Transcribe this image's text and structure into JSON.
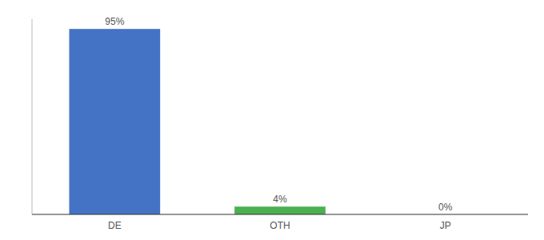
{
  "chart_data": {
    "type": "bar",
    "categories": [
      "DE",
      "OTH",
      "JP"
    ],
    "values": [
      95,
      4,
      0
    ],
    "value_labels": [
      "95%",
      "4%",
      "0%"
    ],
    "colors": [
      "#4472c4",
      "#4CAF50",
      "#4472c4"
    ],
    "ylim": [
      0,
      100
    ],
    "data_labels": true,
    "tick_labels": "x",
    "grid": false
  }
}
